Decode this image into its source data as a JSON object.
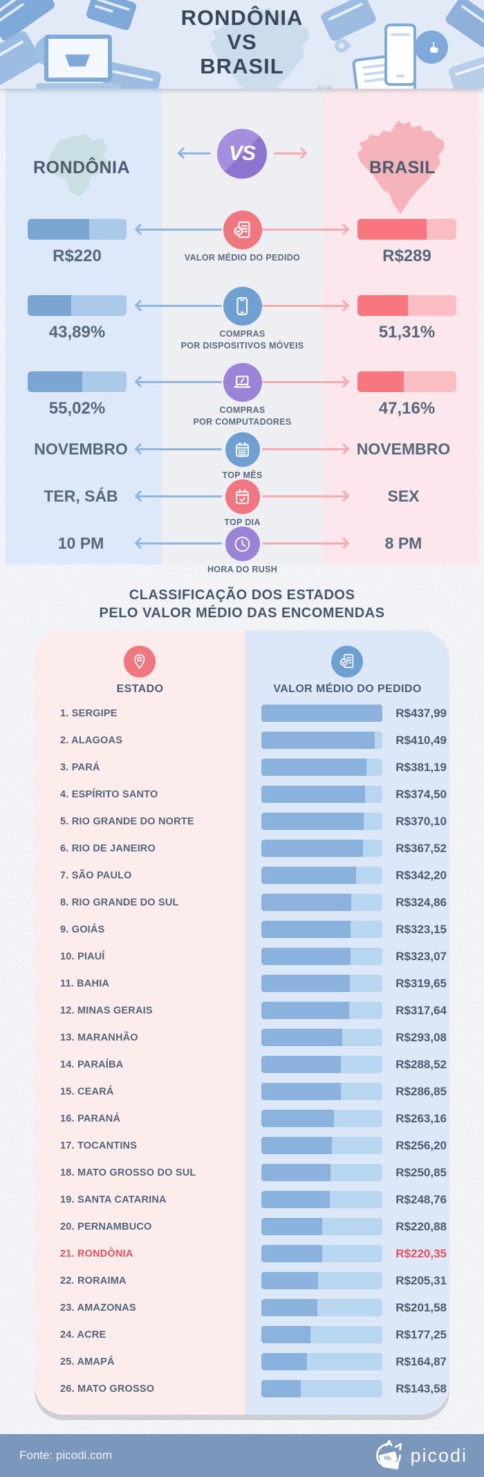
{
  "header": {
    "title_lines": [
      "RONDÔNIA",
      "VS",
      "BRASIL"
    ],
    "decorations": {
      "eur_label": "EUR",
      "percent_label": "%"
    }
  },
  "comparison": {
    "left_region": "RONDÔNIA",
    "right_region": "BRASIL",
    "vs_label": "VS",
    "stats": [
      {
        "type": "bar",
        "icon": "receipt-check-icon",
        "icon_color": "#f0767f",
        "label_lines": [
          "VALOR MÉDIO DO PEDIDO"
        ],
        "left": {
          "value": "R$220",
          "fill_pct": 62
        },
        "right": {
          "value": "R$289",
          "fill_pct": 70
        }
      },
      {
        "type": "bar",
        "icon": "smartphone-icon",
        "icon_color": "#6fa0d2",
        "label_lines": [
          "COMPRAS",
          "POR DISPOSITIVOS MÓVEIS"
        ],
        "left": {
          "value": "43,89%",
          "fill_pct": 43.89
        },
        "right": {
          "value": "51,31%",
          "fill_pct": 51.31
        }
      },
      {
        "type": "bar",
        "icon": "laptop-icon",
        "icon_color": "#9b84d7",
        "label_lines": [
          "COMPRAS",
          "POR COMPUTADORES"
        ],
        "left": {
          "value": "55,02%",
          "fill_pct": 55.02
        },
        "right": {
          "value": "47,16%",
          "fill_pct": 47.16
        }
      },
      {
        "type": "text",
        "icon": "calendar-icon",
        "icon_color": "#6fa0d2",
        "label_lines": [
          "TOP MÊS"
        ],
        "left": {
          "value": "NOVEMBRO"
        },
        "right": {
          "value": "NOVEMBRO"
        }
      },
      {
        "type": "text",
        "icon": "calendar-check-icon",
        "icon_color": "#f0767f",
        "label_lines": [
          "TOP DIA"
        ],
        "left": {
          "value": "TER, SÁB"
        },
        "right": {
          "value": "SEX"
        }
      },
      {
        "type": "text",
        "icon": "clock-icon",
        "icon_color": "#9b84d7",
        "label_lines": [
          "HORA DO RUSH"
        ],
        "left": {
          "value": "10 PM"
        },
        "right": {
          "value": "8 PM"
        }
      }
    ]
  },
  "ranking": {
    "title_lines": [
      "CLASSIFICAÇÃO DOS ESTADOS",
      "PELO VALOR MÉDIO DAS ENCOMENDAS"
    ],
    "col_state": "ESTADO",
    "col_value": "VALOR MÉDIO DO PEDIDO",
    "max_value": 437.99,
    "rows": [
      {
        "rank": 1,
        "state": "SERGIPE",
        "value": 437.99,
        "label": "R$437,99",
        "highlight": false
      },
      {
        "rank": 2,
        "state": "ALAGOAS",
        "value": 410.49,
        "label": "R$410,49",
        "highlight": false
      },
      {
        "rank": 3,
        "state": "PARÁ",
        "value": 381.19,
        "label": "R$381,19",
        "highlight": false
      },
      {
        "rank": 4,
        "state": "ESPÍRITO SANTO",
        "value": 374.5,
        "label": "R$374,50",
        "highlight": false
      },
      {
        "rank": 5,
        "state": "RIO GRANDE DO NORTE",
        "value": 370.1,
        "label": "R$370,10",
        "highlight": false
      },
      {
        "rank": 6,
        "state": "RIO DE JANEIRO",
        "value": 367.52,
        "label": "R$367,52",
        "highlight": false
      },
      {
        "rank": 7,
        "state": "SÃO PAULO",
        "value": 342.2,
        "label": "R$342,20",
        "highlight": false
      },
      {
        "rank": 8,
        "state": "RIO GRANDE DO SUL",
        "value": 324.86,
        "label": "R$324,86",
        "highlight": false
      },
      {
        "rank": 9,
        "state": "GOIÁS",
        "value": 323.15,
        "label": "R$323,15",
        "highlight": false
      },
      {
        "rank": 10,
        "state": "PIAUÍ",
        "value": 323.07,
        "label": "R$323,07",
        "highlight": false
      },
      {
        "rank": 11,
        "state": "BAHIA",
        "value": 319.65,
        "label": "R$319,65",
        "highlight": false
      },
      {
        "rank": 12,
        "state": "MINAS GERAIS",
        "value": 317.64,
        "label": "R$317,64",
        "highlight": false
      },
      {
        "rank": 13,
        "state": "MARANHÃO",
        "value": 293.08,
        "label": "R$293,08",
        "highlight": false
      },
      {
        "rank": 14,
        "state": "PARAÍBA",
        "value": 288.52,
        "label": "R$288,52",
        "highlight": false
      },
      {
        "rank": 15,
        "state": "CEARÁ",
        "value": 286.85,
        "label": "R$286,85",
        "highlight": false
      },
      {
        "rank": 16,
        "state": "PARANÁ",
        "value": 263.16,
        "label": "R$263,16",
        "highlight": false
      },
      {
        "rank": 17,
        "state": "TOCANTINS",
        "value": 256.2,
        "label": "R$256,20",
        "highlight": false
      },
      {
        "rank": 18,
        "state": "MATO GROSSO DO SUL",
        "value": 250.85,
        "label": "R$250,85",
        "highlight": false
      },
      {
        "rank": 19,
        "state": "SANTA CATARINA",
        "value": 248.76,
        "label": "R$248,76",
        "highlight": false
      },
      {
        "rank": 20,
        "state": "PERNAMBUCO",
        "value": 220.88,
        "label": "R$220,88",
        "highlight": false
      },
      {
        "rank": 21,
        "state": "RONDÔNIA",
        "value": 220.35,
        "label": "R$220,35",
        "highlight": true
      },
      {
        "rank": 22,
        "state": "RORAIMA",
        "value": 205.31,
        "label": "R$205,31",
        "highlight": false
      },
      {
        "rank": 23,
        "state": "AMAZONAS",
        "value": 201.58,
        "label": "R$201,58",
        "highlight": false
      },
      {
        "rank": 24,
        "state": "ACRE",
        "value": 177.25,
        "label": "R$177,25",
        "highlight": false
      },
      {
        "rank": 25,
        "state": "AMAPÁ",
        "value": 164.87,
        "label": "R$164,87",
        "highlight": false
      },
      {
        "rank": 26,
        "state": "MATO GROSSO",
        "value": 143.58,
        "label": "R$143,58",
        "highlight": false
      }
    ]
  },
  "footer": {
    "source": "Fonte: picodi.com",
    "brand": "picodi"
  },
  "colors": {
    "accent_blue": "#7ba6d2",
    "accent_red": "#f7767f",
    "accent_purple": "#9b84d7",
    "highlight_red": "#e8505c",
    "footer_bg": "#7b97bb",
    "col_left_bg": "#dde9f8",
    "col_right_bg": "#fce8ec",
    "card_pink": "#fcecec",
    "card_blue": "#dce8f7"
  },
  "chart_data": [
    {
      "type": "table",
      "title": "RONDÔNIA VS BRASIL",
      "categories": [
        "Valor médio do pedido",
        "Compras por dispositivos móveis",
        "Compras por computadores",
        "Top mês",
        "Top dia",
        "Hora do rush"
      ],
      "series": [
        {
          "name": "Rondônia",
          "values": [
            "R$220",
            "43,89%",
            "55,02%",
            "NOVEMBRO",
            "TER, SÁB",
            "10 PM"
          ]
        },
        {
          "name": "Brasil",
          "values": [
            "R$289",
            "51,31%",
            "47,16%",
            "NOVEMBRO",
            "SEX",
            "8 PM"
          ]
        }
      ]
    },
    {
      "type": "bar",
      "title": "Classificação dos estados pelo valor médio das encomendas",
      "orientation": "horizontal",
      "categories": [
        "Sergipe",
        "Alagoas",
        "Pará",
        "Espírito Santo",
        "Rio Grande do Norte",
        "Rio de Janeiro",
        "São Paulo",
        "Rio Grande do Sul",
        "Goiás",
        "Piauí",
        "Bahia",
        "Minas Gerais",
        "Maranhão",
        "Paraíba",
        "Ceará",
        "Paraná",
        "Tocantins",
        "Mato Grosso do Sul",
        "Santa Catarina",
        "Pernambuco",
        "Rondônia",
        "Roraima",
        "Amazonas",
        "Acre",
        "Amapá",
        "Mato Grosso"
      ],
      "values": [
        437.99,
        410.49,
        381.19,
        374.5,
        370.1,
        367.52,
        342.2,
        324.86,
        323.15,
        323.07,
        319.65,
        317.64,
        293.08,
        288.52,
        286.85,
        263.16,
        256.2,
        250.85,
        248.76,
        220.88,
        220.35,
        205.31,
        201.58,
        177.25,
        164.87,
        143.58
      ],
      "xlabel": "Valor médio do pedido (R$)",
      "ylabel": "Estado",
      "xlim": [
        0,
        437.99
      ],
      "highlight_category": "Rondônia",
      "legend": false,
      "grid": false
    }
  ]
}
